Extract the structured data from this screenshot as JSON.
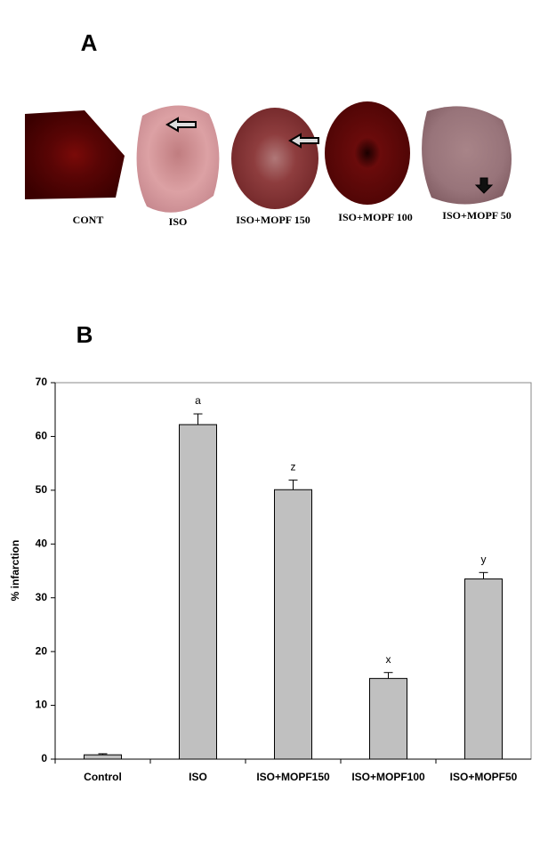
{
  "panels": {
    "a": {
      "label": "A",
      "captions": [
        "CONT",
        "ISO",
        "ISO+MOPF 150",
        "ISO+MOPF 100",
        "ISO+MOPF 50"
      ]
    },
    "b": {
      "label": "B"
    }
  },
  "chart_data": {
    "type": "bar",
    "ylabel": "% infarction",
    "categories": [
      "Control",
      "ISO",
      "ISO+MOPF150",
      "ISO+MOPF100",
      "ISO+MOPF50"
    ],
    "values": [
      0.8,
      62.2,
      50.1,
      15,
      33.5
    ],
    "errors": [
      0.2,
      2,
      1.8,
      1.1,
      1.2
    ],
    "annotations": [
      null,
      "a",
      "z",
      "x",
      "y"
    ],
    "color": "#c0c0c0",
    "ylim": [
      0,
      70
    ],
    "yticks": [
      0,
      10,
      20,
      30,
      40,
      50,
      60,
      70
    ],
    "grid": false
  }
}
